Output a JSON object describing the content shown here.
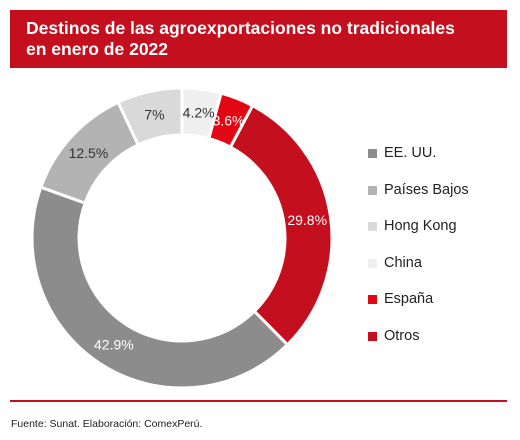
{
  "header": {
    "title_line1": "Destinos de las agroexportaciones no tradicionales",
    "title_line2": "en enero de 2022"
  },
  "chart_data": {
    "type": "pie",
    "variant": "donut",
    "legend_position": "right",
    "categories": [
      "EE. UU.",
      "Países Bajos",
      "Hong Kong",
      "China",
      "España",
      "Otros"
    ],
    "values": [
      42.9,
      12.5,
      7.0,
      4.2,
      3.6,
      29.8
    ],
    "value_labels": [
      "42.9%",
      "12.5%",
      "7%",
      "4.2%",
      "3.6%",
      "29.8%"
    ],
    "colors": [
      "#8c8c8c",
      "#b3b3b3",
      "#d9d9d9",
      "#efefef",
      "#e30613",
      "#c30f1e"
    ],
    "label_colors": [
      "#ffffff",
      "#333333",
      "#333333",
      "#333333",
      "#ffffff",
      "#ffffff"
    ]
  },
  "footer": {
    "source": "Fuente: Sunat. Elaboración: ComexPerú."
  }
}
